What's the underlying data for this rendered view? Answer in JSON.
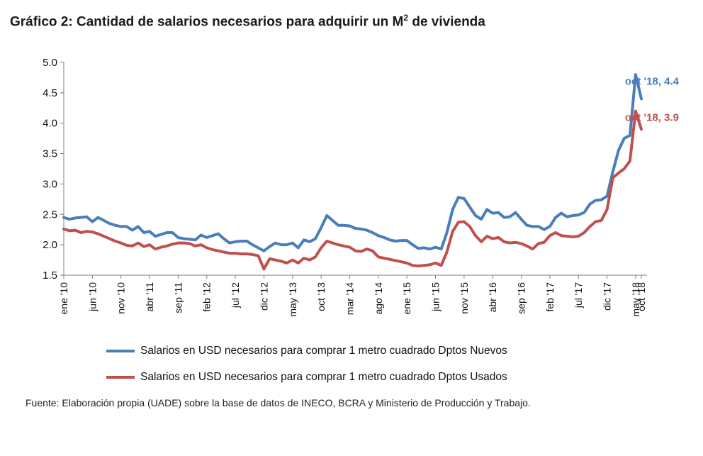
{
  "title": {
    "prefix": "Gráfico 2: Cantidad de salarios necesarios para adquirir un M",
    "sup": "2",
    "suffix": " de vivienda"
  },
  "source": "Fuente: Elaboración propia (UADE) sobre la base de datos de INECO, BCRA y Ministerio de Producción y Trabajo.",
  "chart_data": {
    "type": "line",
    "title": "Gráfico 2: Cantidad de salarios necesarios para adquirir un M2 de vivienda",
    "xlabel": "",
    "ylabel": "",
    "ylim": [
      1.5,
      5.0
    ],
    "yticks": [
      "5.0",
      "4.5",
      "4.0",
      "3.5",
      "3.0",
      "2.5",
      "2.0",
      "1.5"
    ],
    "grid": false,
    "legend_position": "bottom",
    "x_tick_labels": [
      "ene '10",
      "jun '10",
      "nov '10",
      "abr '11",
      "sep '11",
      "feb '12",
      "jul '12",
      "dic '12",
      "may '13",
      "oct '13",
      "mar '14",
      "ago '14",
      "ene '15",
      "jun '15",
      "nov '15",
      "abr '16",
      "sep '16",
      "feb '17",
      "jul '17",
      "dic '17",
      "may '18",
      "oct '18"
    ],
    "series": [
      {
        "name": "Salarios en USD necesarios para comprar 1 metro cuadrado Dptos Nuevos",
        "color": "#4a7ebb",
        "values": [
          2.45,
          2.42,
          2.44,
          2.45,
          2.46,
          2.38,
          2.45,
          2.4,
          2.35,
          2.32,
          2.3,
          2.3,
          2.24,
          2.3,
          2.2,
          2.22,
          2.14,
          2.17,
          2.2,
          2.2,
          2.12,
          2.1,
          2.09,
          2.08,
          2.16,
          2.12,
          2.15,
          2.18,
          2.1,
          2.03,
          2.05,
          2.06,
          2.06,
          2.0,
          1.95,
          1.9,
          1.97,
          2.03,
          2.0,
          2.0,
          2.03,
          1.95,
          2.08,
          2.05,
          2.1,
          2.28,
          2.48,
          2.4,
          2.32,
          2.32,
          2.31,
          2.27,
          2.26,
          2.24,
          2.2,
          2.15,
          2.12,
          2.08,
          2.06,
          2.07,
          2.07,
          2.0,
          1.94,
          1.95,
          1.93,
          1.96,
          1.93,
          2.2,
          2.58,
          2.78,
          2.76,
          2.62,
          2.48,
          2.42,
          2.58,
          2.52,
          2.53,
          2.45,
          2.46,
          2.53,
          2.42,
          2.32,
          2.3,
          2.3,
          2.25,
          2.3,
          2.45,
          2.52,
          2.46,
          2.48,
          2.49,
          2.53,
          2.67,
          2.73,
          2.74,
          2.8,
          3.2,
          3.55,
          3.75,
          3.8,
          4.8,
          4.4
        ]
      },
      {
        "name": "Salarios en USD necesarios para comprar 1 metro cuadrado Dptos Usados",
        "color": "#c0504d",
        "values": [
          2.26,
          2.23,
          2.24,
          2.2,
          2.22,
          2.21,
          2.18,
          2.14,
          2.1,
          2.06,
          2.03,
          1.99,
          1.98,
          2.03,
          1.97,
          2.0,
          1.93,
          1.96,
          1.98,
          2.01,
          2.03,
          2.03,
          2.02,
          1.98,
          2.0,
          1.95,
          1.92,
          1.9,
          1.88,
          1.86,
          1.86,
          1.85,
          1.85,
          1.84,
          1.82,
          1.6,
          1.77,
          1.75,
          1.73,
          1.7,
          1.75,
          1.7,
          1.78,
          1.75,
          1.8,
          1.95,
          2.06,
          2.03,
          2.0,
          1.98,
          1.96,
          1.9,
          1.89,
          1.93,
          1.9,
          1.8,
          1.78,
          1.76,
          1.74,
          1.72,
          1.7,
          1.66,
          1.65,
          1.66,
          1.67,
          1.7,
          1.66,
          1.88,
          2.22,
          2.37,
          2.38,
          2.3,
          2.15,
          2.05,
          2.14,
          2.1,
          2.12,
          2.05,
          2.03,
          2.04,
          2.02,
          1.98,
          1.93,
          2.02,
          2.04,
          2.15,
          2.2,
          2.15,
          2.14,
          2.13,
          2.14,
          2.2,
          2.3,
          2.38,
          2.4,
          2.58,
          3.1,
          3.18,
          3.25,
          3.38,
          4.2,
          3.9
        ]
      }
    ],
    "annotations": [
      {
        "text": "oct '18, 4.4",
        "series": 0,
        "value": 4.4,
        "color": "#4a7ebb"
      },
      {
        "text": "oct '18, 3.9",
        "series": 1,
        "value": 3.9,
        "color": "#c0504d"
      }
    ]
  }
}
